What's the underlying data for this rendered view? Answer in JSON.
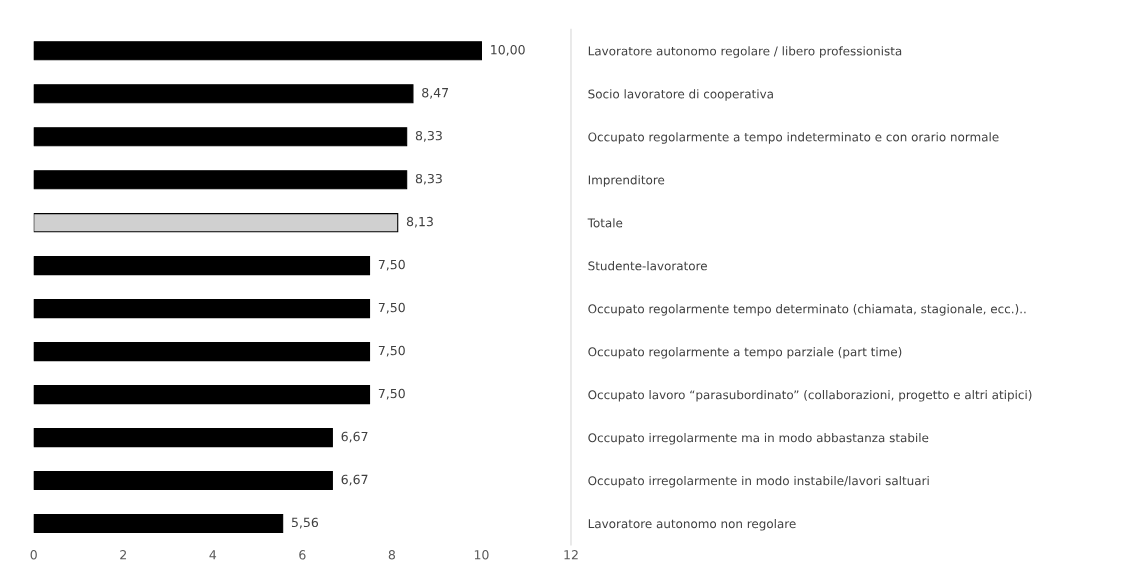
{
  "chart_data": {
    "type": "bar",
    "orientation": "horizontal",
    "categories": [
      "Lavoratore autonomo regolare / libero professionista",
      "Socio lavoratore di cooperativa",
      "Occupato regolarmente a tempo indeterminato e con orario normale",
      "Imprenditore",
      "Totale",
      "Studente-lavoratore",
      "Occupato regolarmente tempo determinato (chiamata, stagionale, ecc.)..",
      "Occupato regolarmente a tempo parziale (part time)",
      "Occupato lavoro “parasubordinato” (collaborazioni, progetto e altri atipici)",
      "Occupato irregolarmente ma in modo abbastanza stabile",
      "Occupato irregolarmente in modo instabile/lavori saltuari",
      "Lavoratore autonomo non regolare"
    ],
    "values": [
      10.0,
      8.47,
      8.33,
      8.33,
      8.13,
      7.5,
      7.5,
      7.5,
      7.5,
      6.67,
      6.67,
      5.56
    ],
    "colors": [
      "#000000",
      "#000000",
      "#000000",
      "#000000",
      "#d0d0d0",
      "#000000",
      "#000000",
      "#000000",
      "#000000",
      "#000000",
      "#000000",
      "#000000"
    ],
    "value_labels": [
      "10,00",
      "8,47",
      "8,33",
      "8,33",
      "8,13",
      "7,50",
      "7,50",
      "7,50",
      "7,50",
      "6,67",
      "6,67",
      "5,56"
    ],
    "xlim": [
      0,
      12
    ],
    "xticks": [
      0,
      2,
      4,
      6,
      8,
      10,
      12
    ],
    "grid": false,
    "legend": false
  }
}
